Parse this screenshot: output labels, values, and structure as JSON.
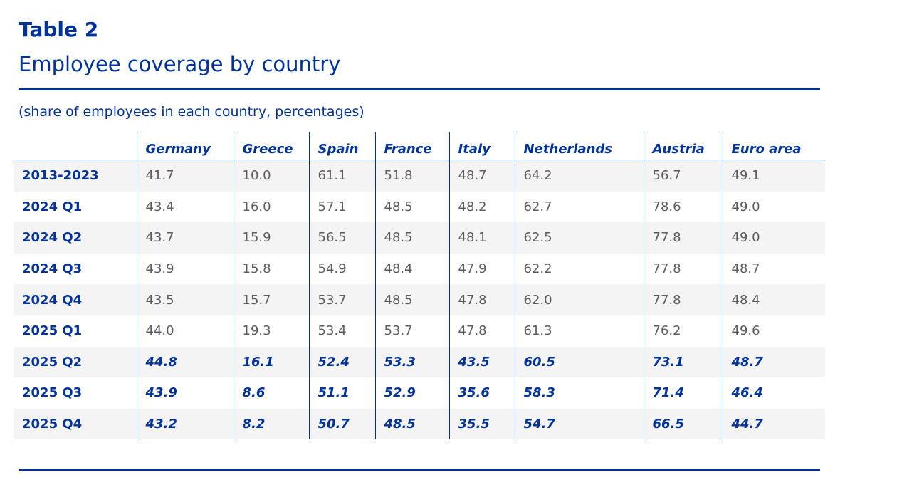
{
  "table_label": "Table 2",
  "title": "Employee coverage by country",
  "subtitle": "(share of employees in each country, percentages)",
  "columns": [
    "Germany",
    "Greece",
    "Spain",
    "France",
    "Italy",
    "Netherlands",
    "Austria",
    "Euro area"
  ],
  "rows": [
    {
      "label": "2013-2023",
      "projected": false,
      "values": [
        "41.7",
        "10.0",
        "61.1",
        "51.8",
        "48.7",
        "64.2",
        "56.7",
        "49.1"
      ]
    },
    {
      "label": "2024 Q1",
      "projected": false,
      "values": [
        "43.4",
        "16.0",
        "57.1",
        "48.5",
        "48.2",
        "62.7",
        "78.6",
        "49.0"
      ]
    },
    {
      "label": "2024 Q2",
      "projected": false,
      "values": [
        "43.7",
        "15.9",
        "56.5",
        "48.5",
        "48.1",
        "62.5",
        "77.8",
        "49.0"
      ]
    },
    {
      "label": "2024 Q3",
      "projected": false,
      "values": [
        "43.9",
        "15.8",
        "54.9",
        "48.4",
        "47.9",
        "62.2",
        "77.8",
        "48.7"
      ]
    },
    {
      "label": "2024 Q4",
      "projected": false,
      "values": [
        "43.5",
        "15.7",
        "53.7",
        "48.5",
        "47.8",
        "62.0",
        "77.8",
        "48.4"
      ]
    },
    {
      "label": "2025 Q1",
      "projected": false,
      "values": [
        "44.0",
        "19.3",
        "53.4",
        "53.7",
        "47.8",
        "61.3",
        "76.2",
        "49.6"
      ]
    },
    {
      "label": "2025 Q2",
      "projected": true,
      "values": [
        "44.8",
        "16.1",
        "52.4",
        "53.3",
        "43.5",
        "60.5",
        "73.1",
        "48.7"
      ]
    },
    {
      "label": "2025 Q3",
      "projected": true,
      "values": [
        "43.9",
        "8.6",
        "51.1",
        "52.9",
        "35.6",
        "58.3",
        "71.4",
        "46.4"
      ]
    },
    {
      "label": "2025 Q4",
      "projected": true,
      "values": [
        "43.2",
        "8.2",
        "50.7",
        "48.5",
        "35.5",
        "54.7",
        "66.5",
        "44.7"
      ]
    }
  ],
  "colors": {
    "accent": "#003299",
    "value_text": "#5c5c5c",
    "stripe": "#f4f4f4"
  }
}
